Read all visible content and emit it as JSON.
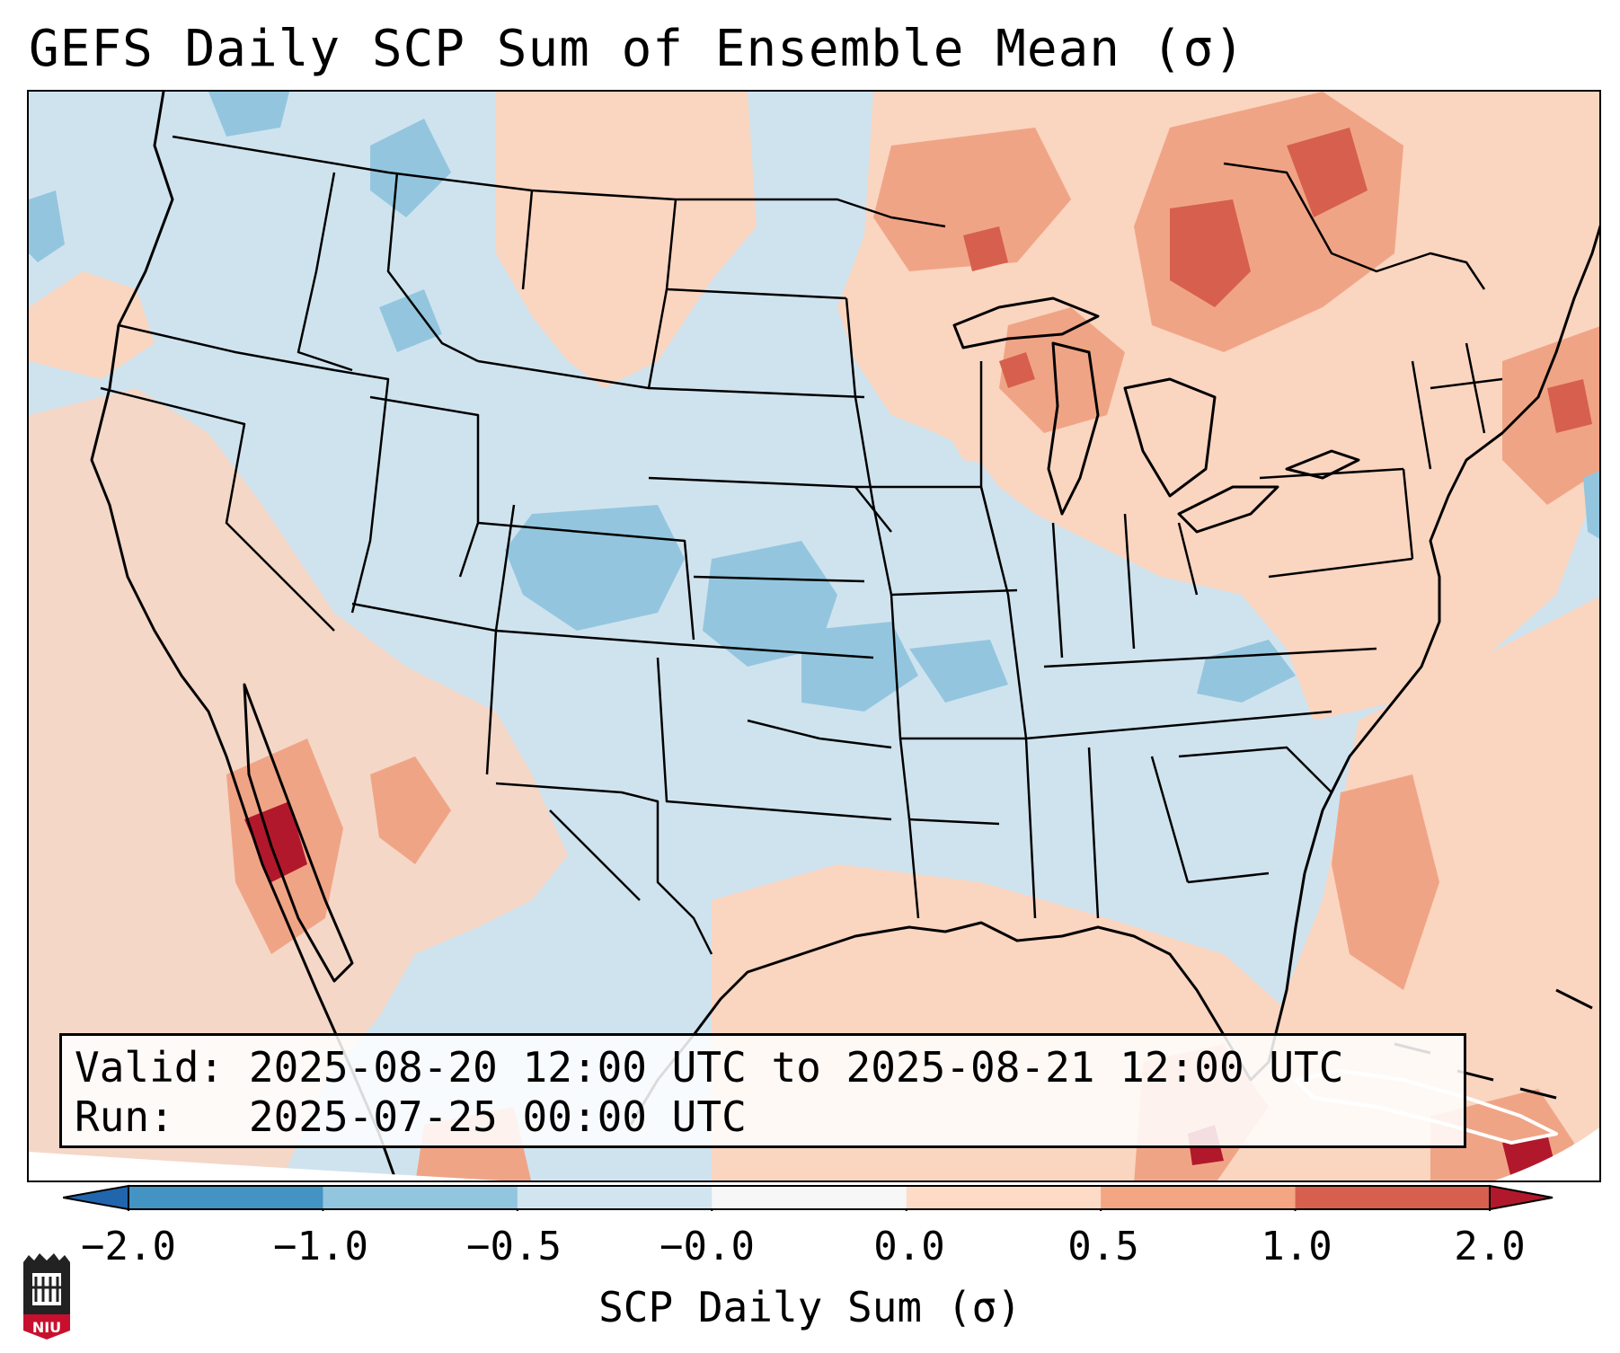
{
  "title": "GEFS Daily SCP Sum of Ensemble Mean (σ)",
  "info": {
    "valid_label": "Valid:",
    "valid_text": "2025-08-20 12:00 UTC to 2025-08-21 12:00 UTC",
    "run_label": "Run:",
    "run_text": "2025-07-25 00:00 UTC"
  },
  "colorbar": {
    "label": "SCP Daily Sum (σ)",
    "ticks": [
      "−2.0",
      "−1.0",
      "−0.5",
      "−0.0",
      "0.0",
      "0.5",
      "1.0",
      "2.0"
    ],
    "colors": [
      "#4393c3",
      "#92c5de",
      "#d1e5f0",
      "#f7f7f7",
      "#fddbc7",
      "#f4a582",
      "#d6604d"
    ],
    "extend_min_color": "#2166ac",
    "extend_max_color": "#b2182b"
  },
  "logo": {
    "text": "NIU",
    "color": "#c8102e"
  },
  "map": {
    "background_color": "#cfe3ef",
    "ocean_outline_color": "#ffffff",
    "border_color": "#000000"
  }
}
